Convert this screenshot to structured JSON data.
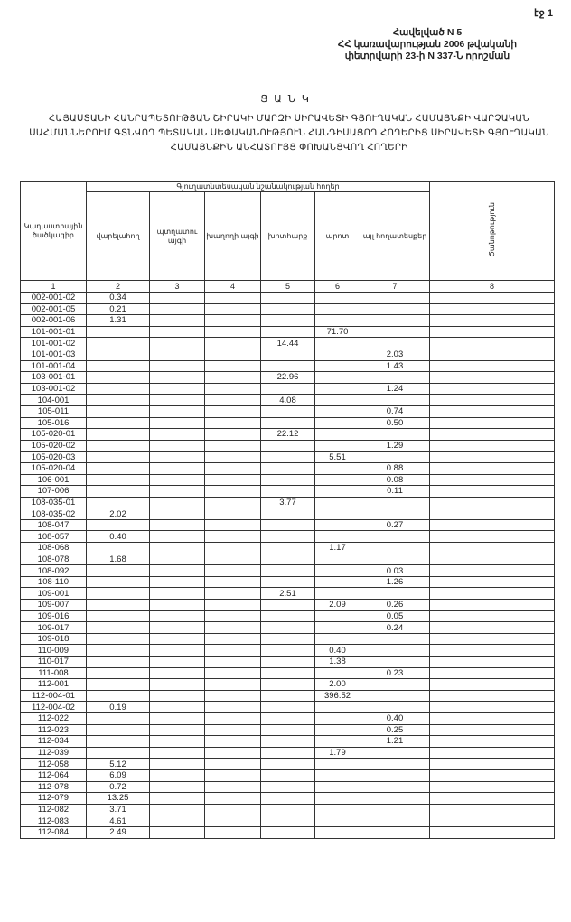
{
  "page_number": "էջ 1",
  "appendix": [
    "Հավելված N 5",
    "ՀՀ կառավարության 2006 թվականի",
    "փետրվարի 23-ի N 337-Ն որոշման"
  ],
  "title": "Ց Ա Ն Կ",
  "subtitle": "ՀԱՅԱՍՏԱՆԻ ՀԱՆՐԱՊԵՏՈՒԹՅԱՆ ՇԻՐԱԿԻ ՄԱՐԶԻ ՍԻՐԱՎԵՏԻ ԳՅՈՒՂԱԿԱՆ ՀԱՄԱՅՆՔԻ ՎԱՐՉԱԿԱՆ ՍԱՀՄԱՆՆԵՐՈՒՄ ԳՏՆՎՈՂ ՊԵՏԱԿԱՆ ՍԵՓԱԿԱՆՈՒԹՅՈՒՆ ՀԱՆԴԻՍԱՑՈՂ ՀՈՂԵՐԻՑ ՍԻՐԱՎԵՏԻ ԳՅՈՒՂԱԿԱՆ ՀԱՄԱՅՆՔԻՆ ԱՆՀԱՏՈՒՅՑ ՓՈԽԱՆՑՎՈՂ ՀՈՂԵՐԻ",
  "table": {
    "group_header": "Գյուղատնտեսական նշանակության հողեր",
    "headers": [
      "Կադաստրային ծածկագիր",
      "վարելահող",
      "պտղատու այգի",
      "խաղողի այգի",
      "խոտհարք",
      "արոտ",
      "այլ հողատեսքեր",
      "Ծանոթություն"
    ],
    "column_numbers": [
      "1",
      "2",
      "3",
      "4",
      "5",
      "6",
      "7",
      "8"
    ],
    "rows": [
      [
        "002-001-02",
        "0.34",
        "",
        "",
        "",
        "",
        "",
        ""
      ],
      [
        "002-001-05",
        "0.21",
        "",
        "",
        "",
        "",
        "",
        ""
      ],
      [
        "002-001-06",
        "1.31",
        "",
        "",
        "",
        "",
        "",
        ""
      ],
      [
        "101-001-01",
        "",
        "",
        "",
        "",
        "71.70",
        "",
        ""
      ],
      [
        "101-001-02",
        "",
        "",
        "",
        "14.44",
        "",
        "",
        ""
      ],
      [
        "101-001-03",
        "",
        "",
        "",
        "",
        "",
        "2.03",
        ""
      ],
      [
        "101-001-04",
        "",
        "",
        "",
        "",
        "",
        "1.43",
        ""
      ],
      [
        "103-001-01",
        "",
        "",
        "",
        "22.96",
        "",
        "",
        ""
      ],
      [
        "103-001-02",
        "",
        "",
        "",
        "",
        "",
        "1.24",
        ""
      ],
      [
        "104-001",
        "",
        "",
        "",
        "4.08",
        "",
        "",
        ""
      ],
      [
        "105-011",
        "",
        "",
        "",
        "",
        "",
        "0.74",
        ""
      ],
      [
        "105-016",
        "",
        "",
        "",
        "",
        "",
        "0.50",
        ""
      ],
      [
        "105-020-01",
        "",
        "",
        "",
        "22.12",
        "",
        "",
        ""
      ],
      [
        "105-020-02",
        "",
        "",
        "",
        "",
        "",
        "1.29",
        ""
      ],
      [
        "105-020-03",
        "",
        "",
        "",
        "",
        "5.51",
        "",
        ""
      ],
      [
        "105-020-04",
        "",
        "",
        "",
        "",
        "",
        "0.88",
        ""
      ],
      [
        "106-001",
        "",
        "",
        "",
        "",
        "",
        "0.08",
        ""
      ],
      [
        "107-006",
        "",
        "",
        "",
        "",
        "",
        "0.11",
        ""
      ],
      [
        "108-035-01",
        "",
        "",
        "",
        "3.77",
        "",
        "",
        ""
      ],
      [
        "108-035-02",
        "2.02",
        "",
        "",
        "",
        "",
        "",
        ""
      ],
      [
        "108-047",
        "",
        "",
        "",
        "",
        "",
        "0.27",
        ""
      ],
      [
        "108-057",
        "0.40",
        "",
        "",
        "",
        "",
        "",
        ""
      ],
      [
        "108-068",
        "",
        "",
        "",
        "",
        "1.17",
        "",
        ""
      ],
      [
        "108-078",
        "1.68",
        "",
        "",
        "",
        "",
        "",
        ""
      ],
      [
        "108-092",
        "",
        "",
        "",
        "",
        "",
        "0.03",
        ""
      ],
      [
        "108-110",
        "",
        "",
        "",
        "",
        "",
        "1.26",
        ""
      ],
      [
        "109-001",
        "",
        "",
        "",
        "2.51",
        "",
        "",
        ""
      ],
      [
        "109-007",
        "",
        "",
        "",
        "",
        "2.09",
        "0.26",
        ""
      ],
      [
        "109-016",
        "",
        "",
        "",
        "",
        "",
        "0.05",
        ""
      ],
      [
        "109-017",
        "",
        "",
        "",
        "",
        "",
        "0.24",
        ""
      ],
      [
        "109-018",
        "",
        "",
        "",
        "",
        "",
        "",
        ""
      ],
      [
        "110-009",
        "",
        "",
        "",
        "",
        "0.40",
        "",
        ""
      ],
      [
        "110-017",
        "",
        "",
        "",
        "",
        "1.38",
        "",
        ""
      ],
      [
        "111-008",
        "",
        "",
        "",
        "",
        "",
        "0.23",
        ""
      ],
      [
        "112-001",
        "",
        "",
        "",
        "",
        "2.00",
        "",
        ""
      ],
      [
        "112-004-01",
        "",
        "",
        "",
        "",
        "396.52",
        "",
        ""
      ],
      [
        "112-004-02",
        "0.19",
        "",
        "",
        "",
        "",
        "",
        ""
      ],
      [
        "112-022",
        "",
        "",
        "",
        "",
        "",
        "0.40",
        ""
      ],
      [
        "112-023",
        "",
        "",
        "",
        "",
        "",
        "0.25",
        ""
      ],
      [
        "112-034",
        "",
        "",
        "",
        "",
        "",
        "1.21",
        ""
      ],
      [
        "112-039",
        "",
        "",
        "",
        "",
        "1.79",
        "",
        ""
      ],
      [
        "112-058",
        "5.12",
        "",
        "",
        "",
        "",
        "",
        ""
      ],
      [
        "112-064",
        "6.09",
        "",
        "",
        "",
        "",
        "",
        ""
      ],
      [
        "112-078",
        "0.72",
        "",
        "",
        "",
        "",
        "",
        ""
      ],
      [
        "112-079",
        "13.25",
        "",
        "",
        "",
        "",
        "",
        ""
      ],
      [
        "112-082",
        "3.71",
        "",
        "",
        "",
        "",
        "",
        ""
      ],
      [
        "112-083",
        "4.61",
        "",
        "",
        "",
        "",
        "",
        ""
      ],
      [
        "112-084",
        "2.49",
        "",
        "",
        "",
        "",
        "",
        ""
      ]
    ]
  }
}
